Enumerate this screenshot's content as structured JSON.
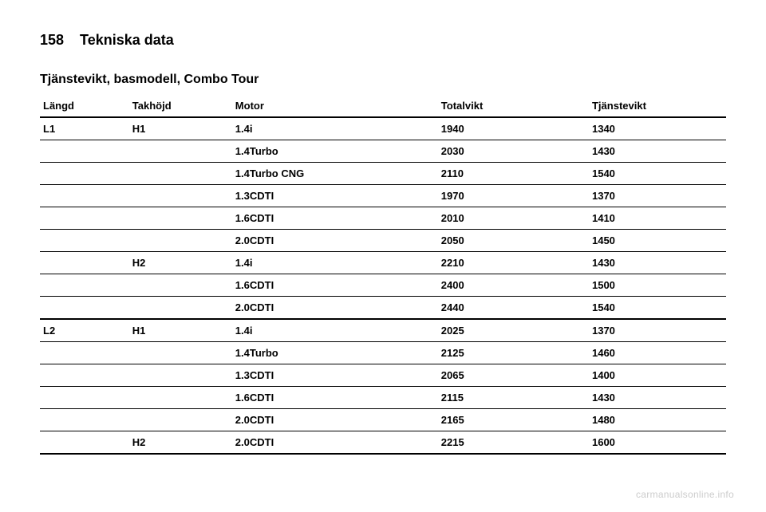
{
  "page": {
    "number": "158",
    "chapter": "Tekniska data",
    "tableTitle": "Tjänstevikt, basmodell, Combo Tour"
  },
  "table": {
    "columns": [
      "Längd",
      "Takhöjd",
      "Motor",
      "Totalvikt",
      "Tjänstevikt"
    ],
    "rows": [
      {
        "length": "L1",
        "height": "H1",
        "motor": "1.4i",
        "total": "1940",
        "empty": "1340",
        "groupEnd": false
      },
      {
        "length": "",
        "height": "",
        "motor": "1.4Turbo",
        "total": "2030",
        "empty": "1430",
        "groupEnd": false
      },
      {
        "length": "",
        "height": "",
        "motor": "1.4Turbo CNG",
        "total": "2110",
        "empty": "1540",
        "groupEnd": false
      },
      {
        "length": "",
        "height": "",
        "motor": "1.3CDTI",
        "total": "1970",
        "empty": "1370",
        "groupEnd": false
      },
      {
        "length": "",
        "height": "",
        "motor": "1.6CDTI",
        "total": "2010",
        "empty": "1410",
        "groupEnd": false
      },
      {
        "length": "",
        "height": "",
        "motor": "2.0CDTI",
        "total": "2050",
        "empty": "1450",
        "groupEnd": false
      },
      {
        "length": "",
        "height": "H2",
        "motor": "1.4i",
        "total": "2210",
        "empty": "1430",
        "groupEnd": false
      },
      {
        "length": "",
        "height": "",
        "motor": "1.6CDTI",
        "total": "2400",
        "empty": "1500",
        "groupEnd": false
      },
      {
        "length": "",
        "height": "",
        "motor": "2.0CDTI",
        "total": "2440",
        "empty": "1540",
        "groupEnd": true
      },
      {
        "length": "L2",
        "height": "H1",
        "motor": "1.4i",
        "total": "2025",
        "empty": "1370",
        "groupEnd": false
      },
      {
        "length": "",
        "height": "",
        "motor": "1.4Turbo",
        "total": "2125",
        "empty": "1460",
        "groupEnd": false
      },
      {
        "length": "",
        "height": "",
        "motor": "1.3CDTI",
        "total": "2065",
        "empty": "1400",
        "groupEnd": false
      },
      {
        "length": "",
        "height": "",
        "motor": "1.6CDTI",
        "total": "2115",
        "empty": "1430",
        "groupEnd": false
      },
      {
        "length": "",
        "height": "",
        "motor": "2.0CDTI",
        "total": "2165",
        "empty": "1480",
        "groupEnd": false
      },
      {
        "length": "",
        "height": "H2",
        "motor": "2.0CDTI",
        "total": "2215",
        "empty": "1600",
        "groupEnd": true
      }
    ]
  },
  "watermark": "carmanualsonline.info"
}
